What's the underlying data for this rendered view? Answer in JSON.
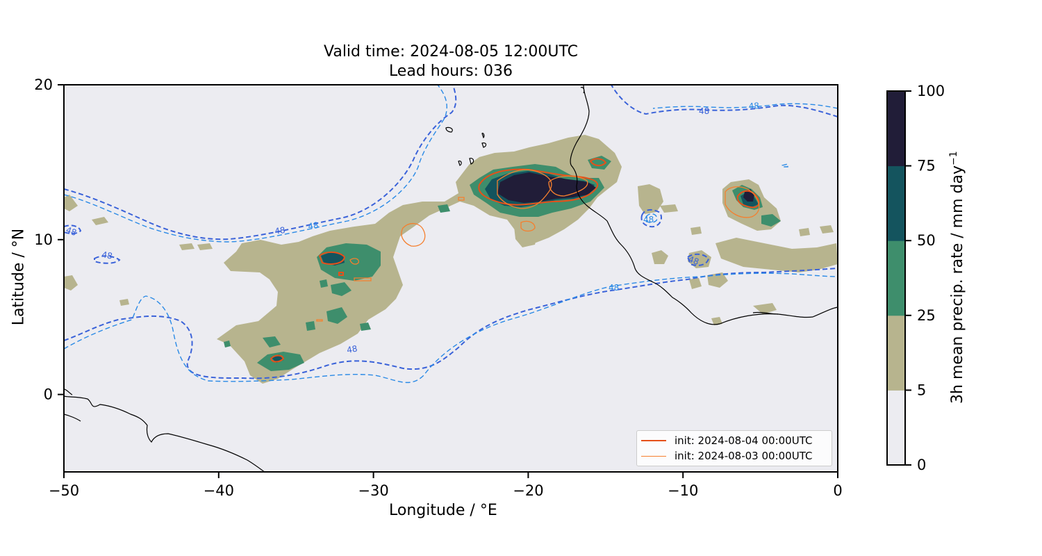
{
  "title": {
    "line1": "Valid time: 2024-08-05 12:00UTC",
    "line2": "Lead hours: 036"
  },
  "axes": {
    "xlabel": "Longitude / °E",
    "ylabel": "Latitude / °N",
    "xlim": [
      -50,
      0
    ],
    "ylim": [
      -5,
      20
    ],
    "xticks": [
      "−50",
      "−40",
      "−30",
      "−20",
      "−10",
      "0"
    ],
    "xtick_values": [
      -50,
      -40,
      -30,
      -20,
      -10,
      0
    ],
    "yticks": [
      "0",
      "10",
      "20"
    ],
    "ytick_values": [
      0,
      10,
      20
    ]
  },
  "colorbar": {
    "label": "3h mean precip. rate / mm day",
    "label_sup": "−1",
    "levels": [
      0,
      5,
      25,
      50,
      75,
      100
    ],
    "tick_labels": [
      "0",
      "5",
      "25",
      "50",
      "75",
      "100"
    ],
    "colors": [
      "#ececf1",
      "#b7b48e",
      "#3e8e6c",
      "#14545e",
      "#211d38"
    ]
  },
  "legend": {
    "entries": [
      {
        "label": "init: 2024-08-04 00:00UTC",
        "color": "#e5501a"
      },
      {
        "label": "init: 2024-08-03 00:00UTC",
        "color": "#f57f2e"
      }
    ]
  },
  "contour_label": "48",
  "colors": {
    "background": "#ececf1",
    "coast": "#000000",
    "contour_dark": "#3a62d9",
    "contour_light": "#2a8ae6"
  }
}
